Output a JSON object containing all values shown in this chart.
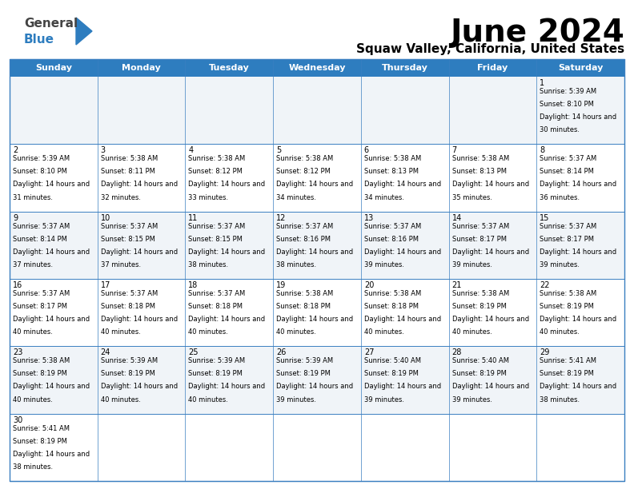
{
  "title": "June 2024",
  "subtitle": "Squaw Valley, California, United States",
  "days_of_week": [
    "Sunday",
    "Monday",
    "Tuesday",
    "Wednesday",
    "Thursday",
    "Friday",
    "Saturday"
  ],
  "header_bg": "#2E7DBF",
  "header_text": "#FFFFFF",
  "cell_bg_odd": "#F0F4F8",
  "cell_bg_even": "#FFFFFF",
  "border_color": "#3A7FC1",
  "text_color": "#000000",
  "logo_general_color": "#444444",
  "logo_blue_color": "#2E7DBF",
  "calendar": [
    [
      null,
      null,
      null,
      null,
      null,
      null,
      {
        "day": "1",
        "sunrise": "5:39 AM",
        "sunset": "8:10 PM",
        "daylight": "14 hours and 30 minutes."
      }
    ],
    [
      {
        "day": "2",
        "sunrise": "5:39 AM",
        "sunset": "8:10 PM",
        "daylight": "14 hours and 31 minutes."
      },
      {
        "day": "3",
        "sunrise": "5:38 AM",
        "sunset": "8:11 PM",
        "daylight": "14 hours and 32 minutes."
      },
      {
        "day": "4",
        "sunrise": "5:38 AM",
        "sunset": "8:12 PM",
        "daylight": "14 hours and 33 minutes."
      },
      {
        "day": "5",
        "sunrise": "5:38 AM",
        "sunset": "8:12 PM",
        "daylight": "14 hours and 34 minutes."
      },
      {
        "day": "6",
        "sunrise": "5:38 AM",
        "sunset": "8:13 PM",
        "daylight": "14 hours and 34 minutes."
      },
      {
        "day": "7",
        "sunrise": "5:38 AM",
        "sunset": "8:13 PM",
        "daylight": "14 hours and 35 minutes."
      },
      {
        "day": "8",
        "sunrise": "5:37 AM",
        "sunset": "8:14 PM",
        "daylight": "14 hours and 36 minutes."
      }
    ],
    [
      {
        "day": "9",
        "sunrise": "5:37 AM",
        "sunset": "8:14 PM",
        "daylight": "14 hours and 37 minutes."
      },
      {
        "day": "10",
        "sunrise": "5:37 AM",
        "sunset": "8:15 PM",
        "daylight": "14 hours and 37 minutes."
      },
      {
        "day": "11",
        "sunrise": "5:37 AM",
        "sunset": "8:15 PM",
        "daylight": "14 hours and 38 minutes."
      },
      {
        "day": "12",
        "sunrise": "5:37 AM",
        "sunset": "8:16 PM",
        "daylight": "14 hours and 38 minutes."
      },
      {
        "day": "13",
        "sunrise": "5:37 AM",
        "sunset": "8:16 PM",
        "daylight": "14 hours and 39 minutes."
      },
      {
        "day": "14",
        "sunrise": "5:37 AM",
        "sunset": "8:17 PM",
        "daylight": "14 hours and 39 minutes."
      },
      {
        "day": "15",
        "sunrise": "5:37 AM",
        "sunset": "8:17 PM",
        "daylight": "14 hours and 39 minutes."
      }
    ],
    [
      {
        "day": "16",
        "sunrise": "5:37 AM",
        "sunset": "8:17 PM",
        "daylight": "14 hours and 40 minutes."
      },
      {
        "day": "17",
        "sunrise": "5:37 AM",
        "sunset": "8:18 PM",
        "daylight": "14 hours and 40 minutes."
      },
      {
        "day": "18",
        "sunrise": "5:37 AM",
        "sunset": "8:18 PM",
        "daylight": "14 hours and 40 minutes."
      },
      {
        "day": "19",
        "sunrise": "5:38 AM",
        "sunset": "8:18 PM",
        "daylight": "14 hours and 40 minutes."
      },
      {
        "day": "20",
        "sunrise": "5:38 AM",
        "sunset": "8:18 PM",
        "daylight": "14 hours and 40 minutes."
      },
      {
        "day": "21",
        "sunrise": "5:38 AM",
        "sunset": "8:19 PM",
        "daylight": "14 hours and 40 minutes."
      },
      {
        "day": "22",
        "sunrise": "5:38 AM",
        "sunset": "8:19 PM",
        "daylight": "14 hours and 40 minutes."
      }
    ],
    [
      {
        "day": "23",
        "sunrise": "5:38 AM",
        "sunset": "8:19 PM",
        "daylight": "14 hours and 40 minutes."
      },
      {
        "day": "24",
        "sunrise": "5:39 AM",
        "sunset": "8:19 PM",
        "daylight": "14 hours and 40 minutes."
      },
      {
        "day": "25",
        "sunrise": "5:39 AM",
        "sunset": "8:19 PM",
        "daylight": "14 hours and 40 minutes."
      },
      {
        "day": "26",
        "sunrise": "5:39 AM",
        "sunset": "8:19 PM",
        "daylight": "14 hours and 39 minutes."
      },
      {
        "day": "27",
        "sunrise": "5:40 AM",
        "sunset": "8:19 PM",
        "daylight": "14 hours and 39 minutes."
      },
      {
        "day": "28",
        "sunrise": "5:40 AM",
        "sunset": "8:19 PM",
        "daylight": "14 hours and 39 minutes."
      },
      {
        "day": "29",
        "sunrise": "5:41 AM",
        "sunset": "8:19 PM",
        "daylight": "14 hours and 38 minutes."
      }
    ],
    [
      {
        "day": "30",
        "sunrise": "5:41 AM",
        "sunset": "8:19 PM",
        "daylight": "14 hours and 38 minutes."
      },
      null,
      null,
      null,
      null,
      null,
      null
    ]
  ]
}
